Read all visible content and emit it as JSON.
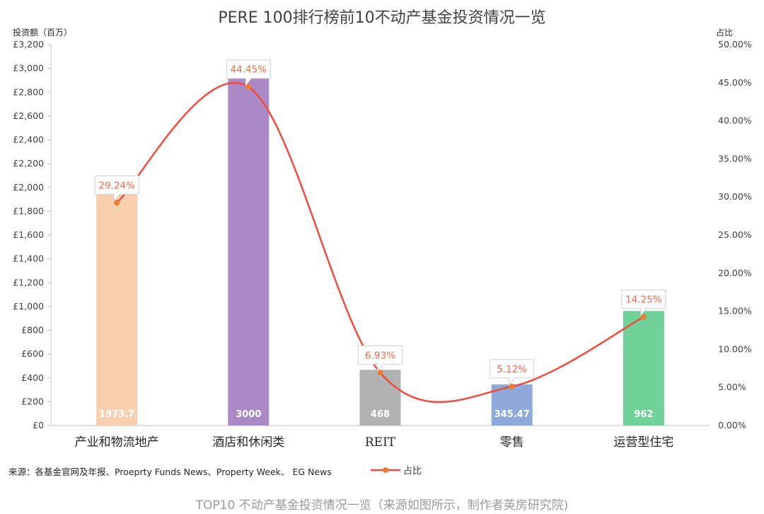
{
  "chart_data": {
    "type": "bar",
    "title": "PERE 100排行榜前10不动产基金投资情况一览",
    "ylabel_left": "投资额（百万）",
    "ylabel_right": "占比",
    "categories": [
      "产业和物流地产",
      "酒店和休闲类",
      "REIT",
      "零售",
      "运营型住宅"
    ],
    "bar_values": [
      1973.7,
      3000,
      468,
      345.47,
      962
    ],
    "bar_labels": [
      "1973.7",
      "3000",
      "468",
      "345.47",
      "962"
    ],
    "bar_colors": [
      "#f8cfb0",
      "#ab88c6",
      "#b2b2b2",
      "#8eaadb",
      "#70d199"
    ],
    "ylim_left": [
      0,
      3200
    ],
    "left_ticks": [
      "£0",
      "£200",
      "£400",
      "£600",
      "£800",
      "£1,000",
      "£1,200",
      "£1,400",
      "£1,600",
      "£1,800",
      "£2,000",
      "£2,200",
      "£2,400",
      "£2,600",
      "£2,800",
      "£3,000",
      "£3,200"
    ],
    "ylim_right": [
      0,
      50
    ],
    "right_ticks": [
      "0.00%",
      "5.00%",
      "10.00%",
      "15.00%",
      "20.00%",
      "25.00%",
      "30.00%",
      "35.00%",
      "40.00%",
      "45.00%",
      "50.00%"
    ],
    "line_series": {
      "name": "占比",
      "values": [
        29.24,
        44.45,
        6.93,
        5.12,
        14.25
      ],
      "labels": [
        "29.24%",
        "44.45%",
        "6.93%",
        "5.12%",
        "14.25%"
      ],
      "color": "#f24a3c",
      "marker_color": "#ed7d31"
    },
    "legend_position": "bottom",
    "grid": false
  },
  "source_note": "来源：各基金官网及年报、Proeprty Funds News、Property Week、 EG News",
  "legend_label": "占比",
  "caption": "TOP10 不动产基金投资情况一览（来源如图所示，制作者英房研究院)"
}
